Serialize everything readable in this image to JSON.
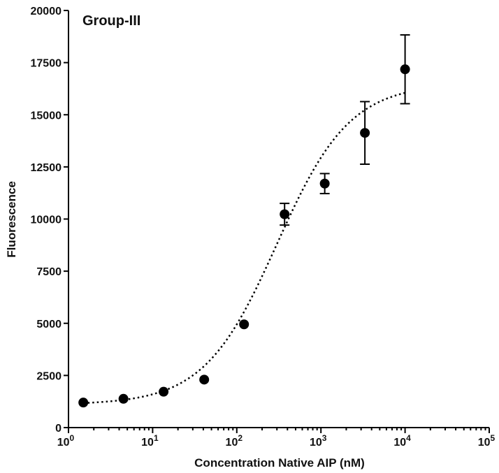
{
  "chart_data": {
    "type": "scatter",
    "title": "Group-III",
    "xlabel": "Concentration Native AIP (nM)",
    "ylabel": "Fluorescence",
    "x_scale": "log",
    "xlim": [
      1,
      100000
    ],
    "ylim": [
      0,
      20000
    ],
    "x_ticks": [
      {
        "value": 1,
        "base": "10",
        "exp": "0"
      },
      {
        "value": 10,
        "base": "10",
        "exp": "1"
      },
      {
        "value": 100,
        "base": "10",
        "exp": "2"
      },
      {
        "value": 1000,
        "base": "10",
        "exp": "3"
      },
      {
        "value": 10000,
        "base": "10",
        "exp": "4"
      },
      {
        "value": 100000,
        "base": "10",
        "exp": "5"
      }
    ],
    "y_ticks": [
      0,
      2500,
      5000,
      7500,
      10000,
      12500,
      15000,
      17500,
      20000
    ],
    "grid": false,
    "points": [
      {
        "x": 1.5,
        "y": 1200,
        "err": 0
      },
      {
        "x": 4.5,
        "y": 1380,
        "err": 0
      },
      {
        "x": 13.5,
        "y": 1720,
        "err": 0
      },
      {
        "x": 41,
        "y": 2300,
        "err": 0
      },
      {
        "x": 122,
        "y": 4950,
        "err": 0
      },
      {
        "x": 370,
        "y": 10230,
        "err": 520
      },
      {
        "x": 1110,
        "y": 11700,
        "err": 480
      },
      {
        "x": 3330,
        "y": 14130,
        "err": 1500
      },
      {
        "x": 10000,
        "y": 17180,
        "err": 1650
      }
    ],
    "fit_curve": {
      "style": "dotted",
      "bottom": 1100,
      "top": 16500,
      "ec50": 300,
      "hill": 1,
      "x_range": [
        1.5,
        10000
      ]
    }
  }
}
